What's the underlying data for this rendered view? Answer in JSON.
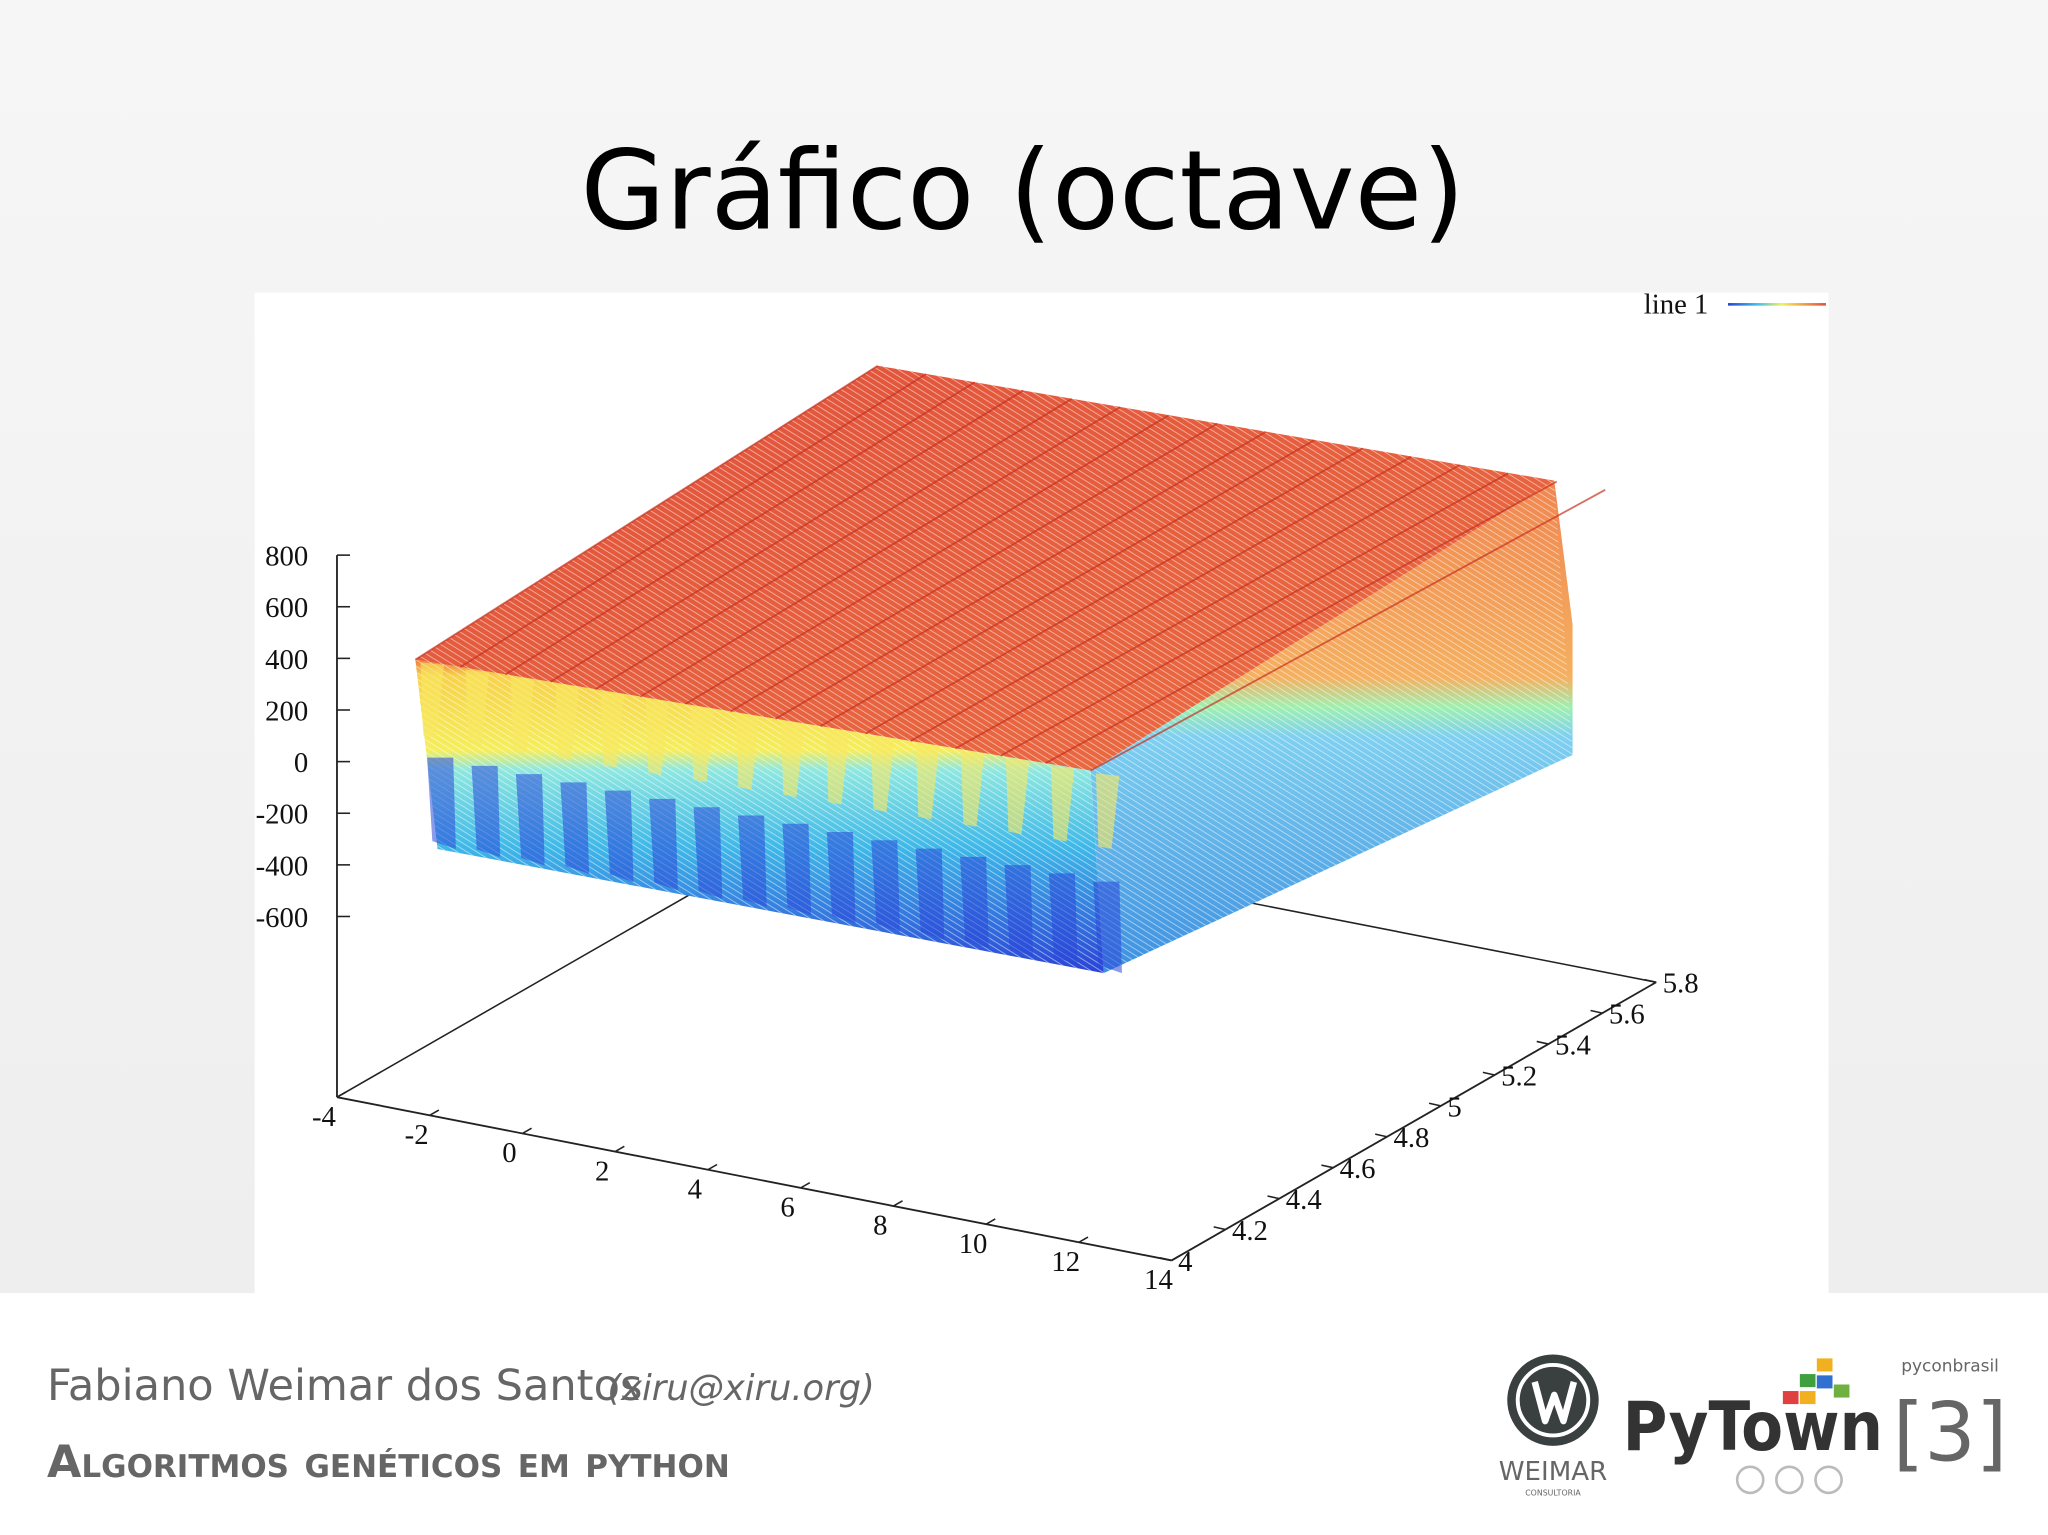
{
  "slide": {
    "title": "Gráfico (octave)",
    "footer": {
      "author": "Fabiano Weimar dos Santos",
      "email": "(xiru@xiru.org)",
      "talk": "Algoritmos genéticos em python",
      "logos": {
        "weimar": "WEIMAR",
        "weimar_sub": "CONSULTORIA",
        "pytown": "PyTown",
        "pycon": "pyconbrasil",
        "pycon_edition": "[3]"
      }
    }
  },
  "chart_data": {
    "type": "surface3d",
    "legend_label": "line 1",
    "xlim": [
      -4,
      14
    ],
    "xticks": [
      -4,
      -2,
      0,
      2,
      4,
      6,
      8,
      10,
      12,
      14
    ],
    "ylim": [
      4,
      5.8
    ],
    "yticks": [
      4,
      4.2,
      4.4,
      4.6,
      4.8,
      5,
      5.2,
      5.4,
      5.6,
      5.8
    ],
    "zlim": [
      -1300,
      800
    ],
    "zticks": [
      -600,
      -400,
      -200,
      0,
      200,
      400,
      600,
      800
    ]
  }
}
